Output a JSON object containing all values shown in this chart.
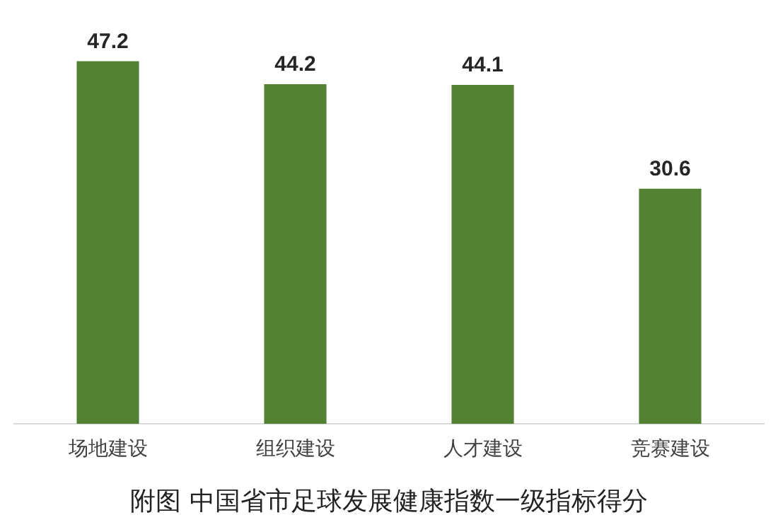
{
  "chart_data": {
    "type": "bar",
    "title": "附图 中国省市足球发展健康指数一级指标得分",
    "categories": [
      "场地建设",
      "组织建设",
      "人才建设",
      "竞赛建设"
    ],
    "values": [
      47.2,
      44.2,
      44.1,
      30.6
    ],
    "color": "#548235",
    "data_labels": true,
    "grid": false,
    "legend": false
  }
}
